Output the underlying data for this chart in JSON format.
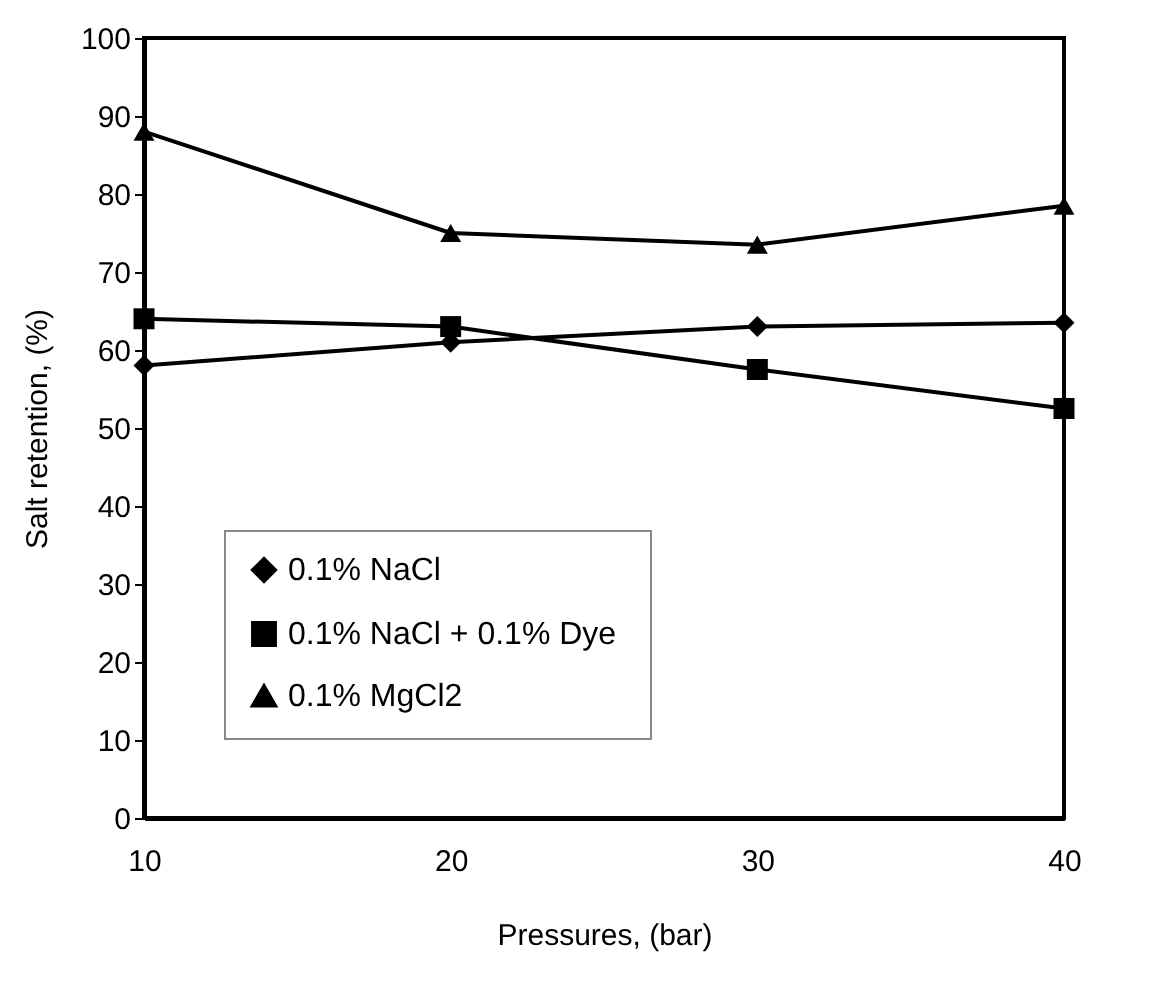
{
  "chart_data": {
    "type": "line",
    "xlabel": "Pressures, (bar)",
    "ylabel": "Salt retention, (%)",
    "x": [
      10,
      20,
      30,
      40
    ],
    "series": [
      {
        "name": "0.1%  NaCl",
        "color": "#000000",
        "marker": "diamond",
        "values": [
          58,
          61,
          63,
          63.5
        ]
      },
      {
        "name": "0.1%  NaCl + 0.1% Dye",
        "color": "#000000",
        "marker": "square",
        "values": [
          64,
          63,
          57.5,
          52.5
        ]
      },
      {
        "name": "0.1% MgCl2",
        "color": "#000000",
        "marker": "triangle",
        "values": [
          88,
          75,
          73.5,
          78.5
        ]
      }
    ],
    "xlim": [
      10,
      40
    ],
    "xticks": [
      10,
      20,
      30,
      40
    ],
    "ylim": [
      0,
      100
    ],
    "yticks": [
      0,
      10,
      20,
      30,
      40,
      50,
      60,
      70,
      80,
      90,
      100
    ],
    "grid": false,
    "legend": "bottom left",
    "line_style": "solid"
  }
}
